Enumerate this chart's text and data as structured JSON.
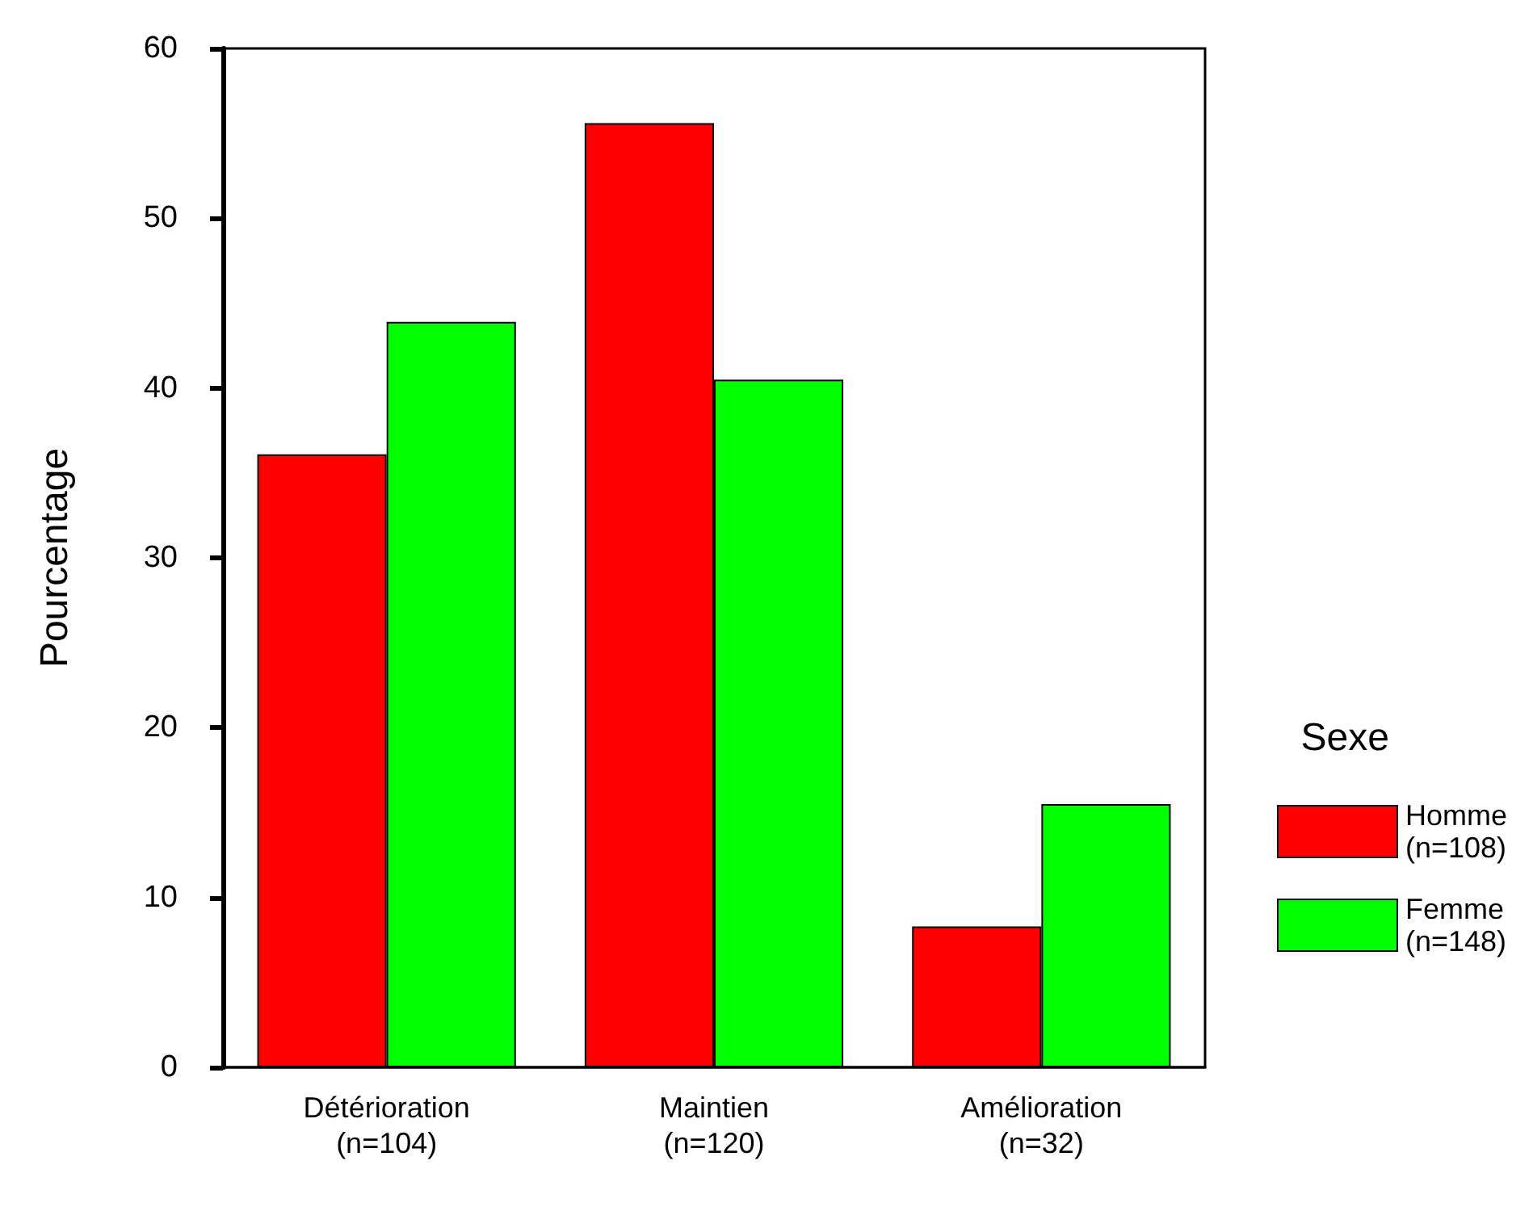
{
  "chart_data": {
    "type": "bar",
    "ylabel": "Pourcentage",
    "legend_title": "Sexe",
    "categories": [
      "Détérioration\n(n=104)",
      "Maintien\n(n=120)",
      "Amélioration\n(n=32)"
    ],
    "series": [
      {
        "name": "Homme\n(n=108)",
        "color": "#ff0000",
        "values": [
          36.1,
          55.6,
          8.3
        ]
      },
      {
        "name": "Femme\n(n=148)",
        "color": "#00ff00",
        "values": [
          43.9,
          40.5,
          15.5
        ]
      }
    ],
    "ylim": [
      0,
      60
    ],
    "yticks": [
      0,
      10,
      20,
      30,
      40,
      50,
      60
    ],
    "grid": false,
    "legend": "right"
  }
}
